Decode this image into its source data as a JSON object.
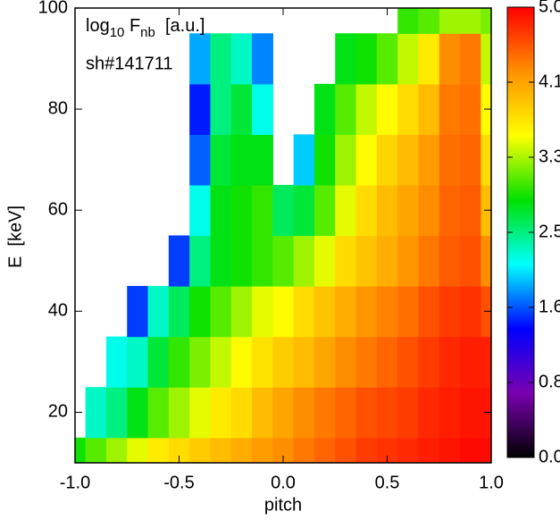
{
  "chart_data": {
    "type": "heatmap",
    "title_parts": [
      "log",
      "10",
      " F",
      "nb",
      "  [a.u.]"
    ],
    "subtitle": "sh#141711",
    "x_label": "pitch",
    "y_label": "E  [keV]",
    "x": [
      -1.0,
      -0.9,
      -0.8,
      -0.7,
      -0.6,
      -0.5,
      -0.4,
      -0.3,
      -0.2,
      -0.1,
      0.0,
      0.1,
      0.2,
      0.3,
      0.4,
      0.5,
      0.6,
      0.7,
      0.8,
      0.9,
      1.0
    ],
    "y": [
      10,
      20,
      30,
      40,
      50,
      60,
      70,
      80,
      90,
      100
    ],
    "z": [
      [
        2.9,
        3.1,
        3.3,
        3.5,
        3.7,
        3.8,
        3.9,
        4.0,
        4.1,
        4.2,
        4.3,
        4.4,
        4.5,
        4.6,
        4.7,
        4.75,
        4.8,
        4.85,
        4.9,
        4.95,
        4.95
      ],
      [
        null,
        2.3,
        2.5,
        2.8,
        3.1,
        3.3,
        3.5,
        3.7,
        3.8,
        4.0,
        4.15,
        4.3,
        4.4,
        4.5,
        4.6,
        4.65,
        4.7,
        4.8,
        4.85,
        4.9,
        4.9
      ],
      [
        null,
        null,
        2.2,
        2.3,
        2.7,
        3.0,
        3.2,
        3.4,
        3.6,
        3.75,
        3.9,
        4.0,
        4.15,
        4.3,
        4.4,
        4.5,
        4.6,
        4.7,
        4.8,
        4.85,
        4.85
      ],
      [
        null,
        null,
        null,
        1.6,
        2.3,
        2.6,
        2.9,
        3.1,
        3.3,
        3.5,
        3.6,
        3.8,
        3.95,
        4.1,
        4.25,
        4.35,
        4.45,
        4.6,
        4.7,
        4.75,
        4.6
      ],
      [
        null,
        null,
        null,
        null,
        null,
        1.6,
        2.5,
        2.8,
        2.9,
        3.0,
        3.1,
        3.3,
        3.5,
        3.8,
        3.95,
        4.1,
        4.25,
        4.4,
        4.55,
        4.6,
        4.3
      ],
      [
        null,
        null,
        null,
        null,
        null,
        null,
        2.2,
        2.8,
        2.9,
        3.0,
        2.6,
        2.7,
        3.1,
        3.5,
        3.8,
        4.0,
        4.15,
        4.3,
        4.5,
        4.55,
        4.0
      ],
      [
        null,
        null,
        null,
        null,
        null,
        null,
        1.7,
        2.7,
        2.8,
        2.8,
        null,
        2.0,
        2.9,
        3.3,
        3.6,
        3.85,
        4.0,
        4.2,
        4.45,
        4.5,
        3.8
      ],
      [
        null,
        null,
        null,
        null,
        null,
        null,
        1.5,
        2.5,
        2.7,
        2.2,
        null,
        null,
        2.8,
        3.1,
        3.4,
        3.6,
        3.8,
        4.0,
        4.4,
        4.45,
        3.6
      ],
      [
        null,
        null,
        null,
        null,
        null,
        null,
        1.9,
        2.5,
        2.3,
        1.8,
        null,
        null,
        null,
        2.8,
        2.9,
        3.1,
        3.4,
        3.7,
        4.3,
        4.4,
        3.4
      ],
      [
        null,
        null,
        null,
        null,
        null,
        null,
        null,
        null,
        null,
        null,
        null,
        null,
        null,
        null,
        null,
        null,
        3.0,
        3.1,
        3.3,
        3.3,
        3.2
      ]
    ],
    "xlim": [
      -1.0,
      1.0
    ],
    "xticks": [
      {
        "value": -1.0,
        "label": "-1.0"
      },
      {
        "value": -0.5,
        "label": "-0.5"
      },
      {
        "value": 0.0,
        "label": "0.0"
      },
      {
        "value": 0.5,
        "label": "0.5"
      },
      {
        "value": 1.0,
        "label": "1.0"
      }
    ],
    "ylim": [
      10,
      100
    ],
    "yticks": [
      20,
      40,
      60,
      80,
      100
    ],
    "zlim": [
      0,
      5
    ],
    "zticks": [
      {
        "value": 0,
        "label": "0.00"
      },
      {
        "value": 0.8333,
        "label": "0.83"
      },
      {
        "value": 1.6667,
        "label": "1.67"
      },
      {
        "value": 2.5,
        "label": "2.50"
      },
      {
        "value": 3.3333,
        "label": "3.33"
      },
      {
        "value": 4.1667,
        "label": "4.17"
      },
      {
        "value": 5,
        "label": "5.00"
      }
    ],
    "colorscale": [
      "#000000",
      "#7a00b0",
      "#0000ff",
      "#00ffff",
      "#00e000",
      "#ffff00",
      "#ff9000",
      "#ff0000"
    ]
  }
}
